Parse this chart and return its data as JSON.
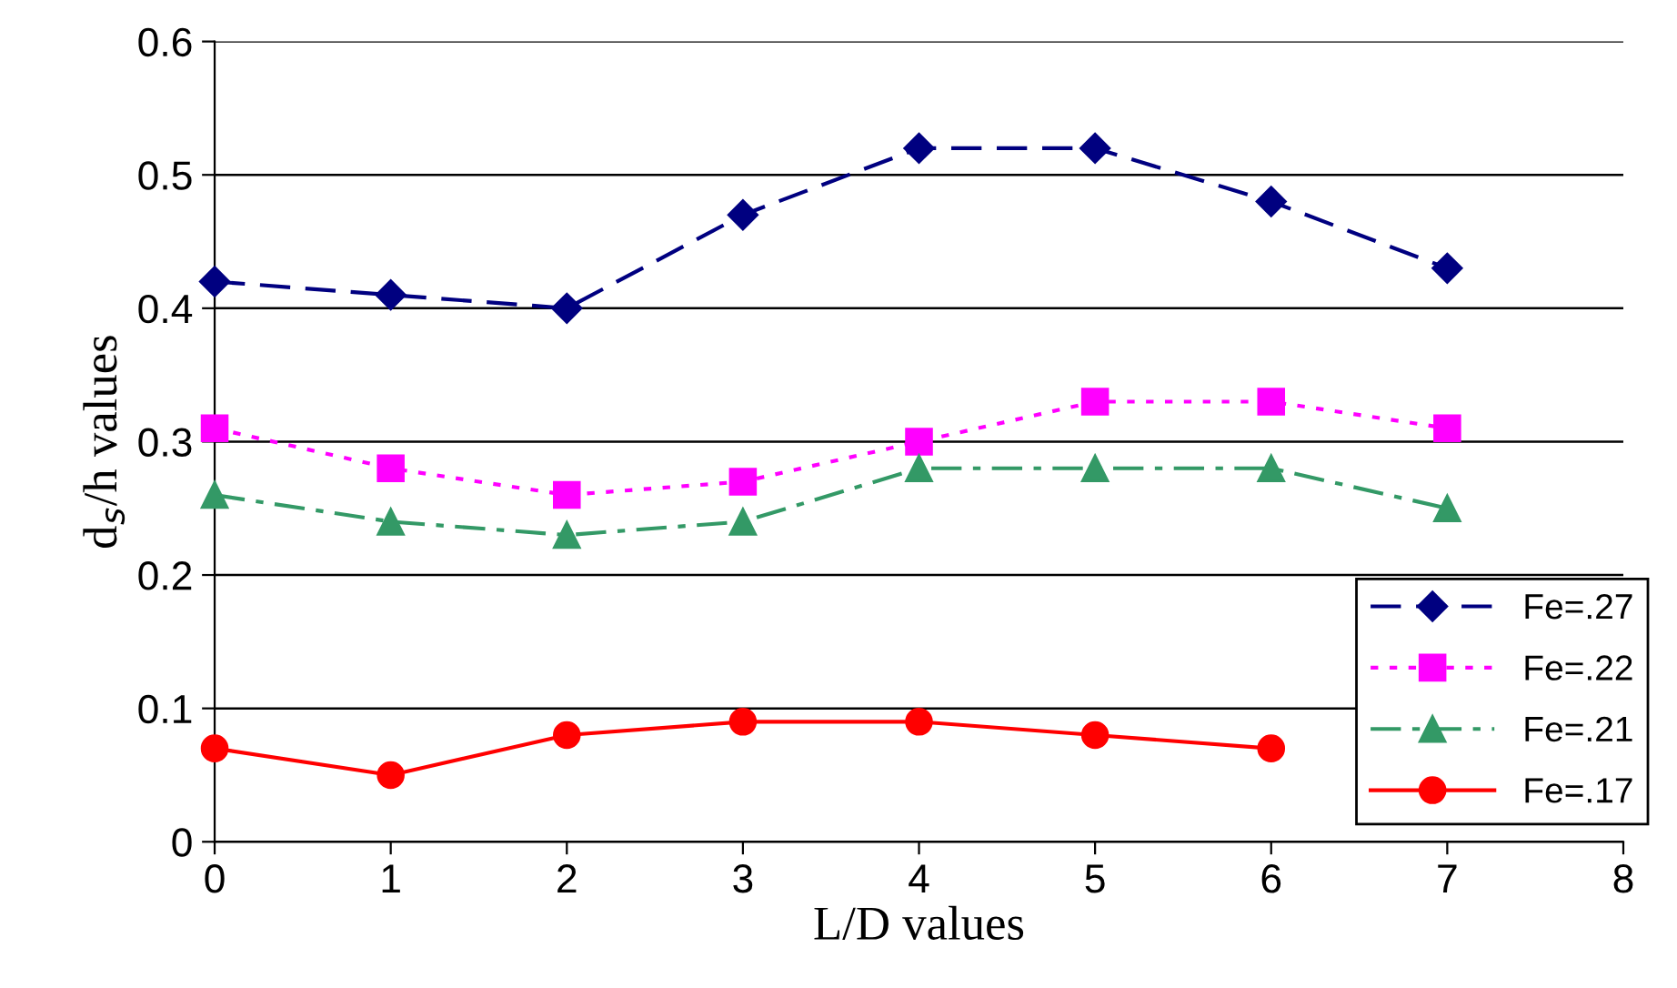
{
  "chart_data": {
    "type": "line",
    "xlabel": "L/D values",
    "ylabel": "d$_{s}$/h values",
    "xlim": [
      0,
      8
    ],
    "xticks": [
      0,
      1,
      2,
      3,
      4,
      5,
      6,
      7,
      8
    ],
    "ylim": [
      0,
      0.6
    ],
    "yticks": [
      0,
      0.1,
      0.2,
      0.3,
      0.4,
      0.5,
      0.6
    ],
    "grid": "y",
    "legend": "bottom right",
    "series": [
      {
        "name": "Fe=.27",
        "color": "#000080",
        "marker": "diamond",
        "line_style": "dashed",
        "x": [
          0,
          1,
          2,
          3,
          4,
          5,
          6,
          7
        ],
        "values": [
          0.42,
          0.41,
          0.4,
          0.47,
          0.52,
          0.52,
          0.48,
          0.43
        ]
      },
      {
        "name": "Fe=.22",
        "color": "#ff00ff",
        "marker": "square",
        "line_style": "dotted",
        "x": [
          0,
          1,
          2,
          3,
          4,
          5,
          6,
          7
        ],
        "values": [
          0.31,
          0.28,
          0.26,
          0.27,
          0.3,
          0.33,
          0.33,
          0.31
        ]
      },
      {
        "name": "Fe=.21",
        "color": "#339966",
        "marker": "triangle",
        "line_style": "dashdot",
        "x": [
          0,
          1,
          2,
          3,
          4,
          5,
          6,
          7
        ],
        "values": [
          0.26,
          0.24,
          0.23,
          0.24,
          0.28,
          0.28,
          0.28,
          0.25
        ]
      },
      {
        "name": "Fe=.17",
        "color": "#ff0000",
        "marker": "circle",
        "line_style": "solid",
        "x": [
          0,
          1,
          2,
          3,
          4,
          5,
          6
        ],
        "values": [
          0.07,
          0.05,
          0.08,
          0.09,
          0.09,
          0.08,
          0.07
        ]
      }
    ]
  }
}
